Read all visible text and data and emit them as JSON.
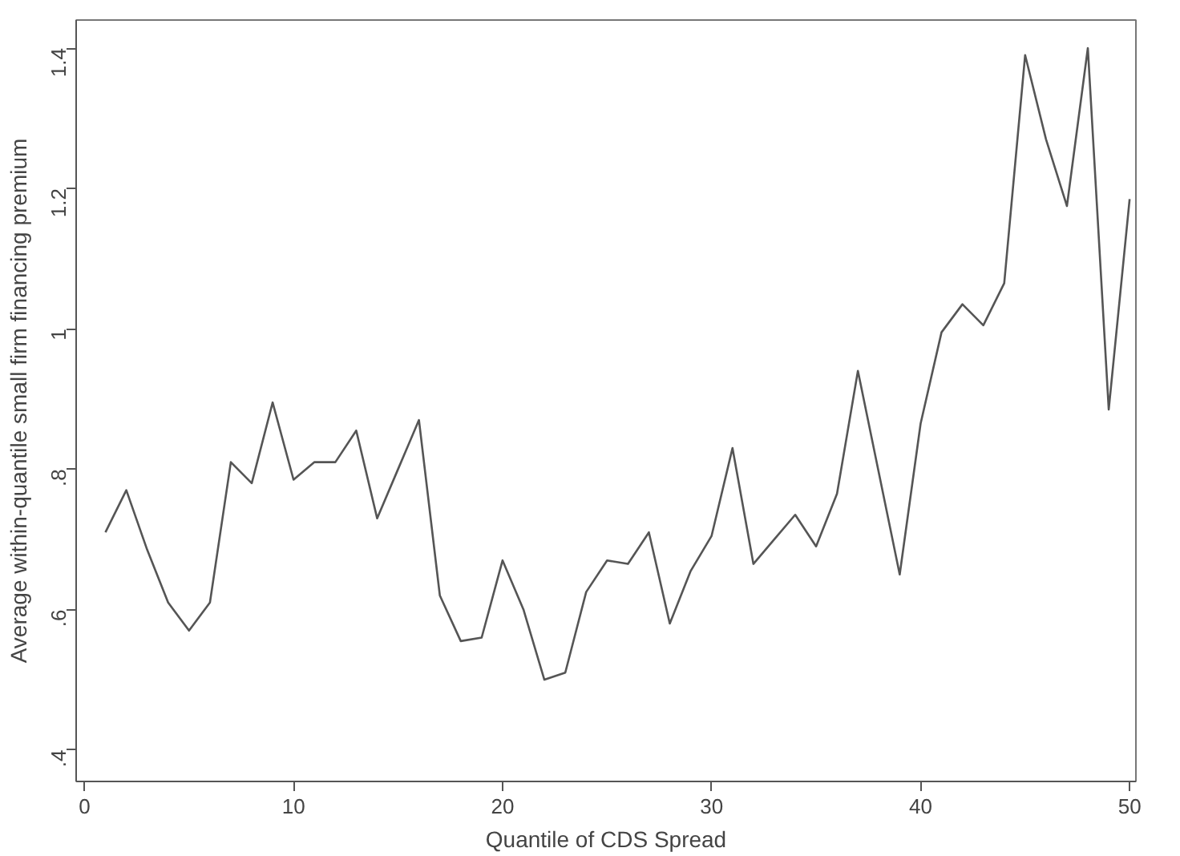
{
  "chart_data": {
    "type": "line",
    "xlabel": "Quantile of CDS Spread",
    "ylabel": "Average within-quantile small firm financing premium",
    "x": [
      1,
      2,
      3,
      4,
      5,
      6,
      7,
      8,
      9,
      10,
      11,
      12,
      13,
      14,
      15,
      16,
      17,
      18,
      19,
      20,
      21,
      22,
      23,
      24,
      25,
      26,
      27,
      28,
      29,
      30,
      31,
      32,
      33,
      34,
      35,
      36,
      37,
      38,
      39,
      40,
      41,
      42,
      43,
      44,
      45,
      46,
      47,
      48,
      49,
      50
    ],
    "series": [
      {
        "color": "#555555",
        "values": [
          0.71,
          0.77,
          0.685,
          0.61,
          0.57,
          0.61,
          0.81,
          0.78,
          0.895,
          0.785,
          0.81,
          0.81,
          0.855,
          0.73,
          0.8,
          0.87,
          0.62,
          0.555,
          0.56,
          0.67,
          0.6,
          0.5,
          0.51,
          0.625,
          0.67,
          0.665,
          0.71,
          0.58,
          0.655,
          0.705,
          0.83,
          0.665,
          0.7,
          0.735,
          0.69,
          0.765,
          0.94,
          0.795,
          0.65,
          0.865,
          0.995,
          1.035,
          1.005,
          1.065,
          1.39,
          1.27,
          1.175,
          1.4,
          0.885,
          1.185
        ]
      }
    ],
    "xlim": [
      -0.4,
      50.3
    ],
    "ylim": [
      0.355,
      1.44
    ],
    "xticks": [
      0,
      10,
      20,
      30,
      40,
      50
    ],
    "yticks": [
      {
        "value": 0.4,
        "label": ".4"
      },
      {
        "value": 0.6,
        "label": ".6"
      },
      {
        "value": 0.8,
        "label": ".8"
      },
      {
        "value": 1,
        "label": "1"
      },
      {
        "value": 1.2,
        "label": "1.2"
      },
      {
        "value": 1.4,
        "label": "1.4"
      }
    ],
    "grid": false,
    "marker": "none",
    "line_style": "solid"
  }
}
